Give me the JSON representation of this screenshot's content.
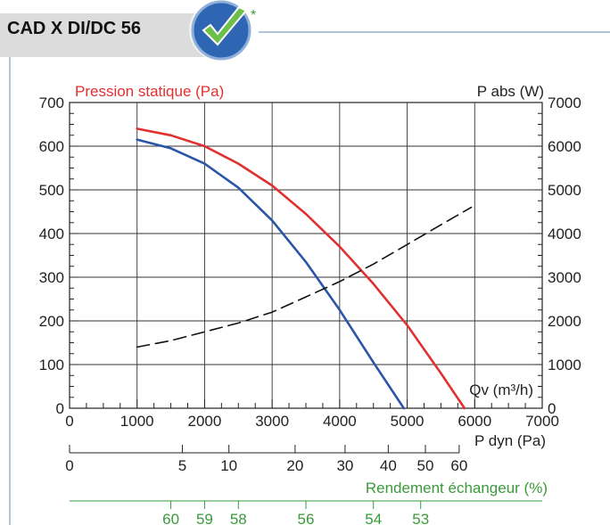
{
  "header": {
    "title": "CAD X DI/DC 56",
    "badge_mark": "*",
    "badge_icon": "checkmark-badge-icon",
    "tab_color": "#dcdcdc",
    "rule_color": "#7f9fbf"
  },
  "chart_data": {
    "type": "line",
    "x_axis": {
      "label": "Qv (m³/h)",
      "ticks": [
        0,
        1000,
        2000,
        3000,
        4000,
        5000,
        6000,
        7000
      ],
      "range": [
        0,
        7000
      ]
    },
    "y_axis_left": {
      "label": "Pression statique (Pa)",
      "label_color": "#e03030",
      "ticks": [
        0,
        100,
        200,
        300,
        400,
        500,
        600,
        700
      ],
      "range": [
        0,
        700
      ]
    },
    "y_axis_right": {
      "label": "P abs (W)",
      "ticks": [
        0,
        1000,
        2000,
        3000,
        4000,
        5000,
        6000,
        7000
      ],
      "range": [
        0,
        7000
      ]
    },
    "grid": true,
    "series": [
      {
        "axis": "left",
        "color": "#e03030",
        "style": "solid",
        "x": [
          1000,
          1500,
          2000,
          2500,
          3000,
          3500,
          4000,
          4500,
          5000,
          5500,
          5850
        ],
        "y": [
          640,
          625,
          600,
          560,
          510,
          445,
          370,
          285,
          190,
          80,
          0
        ]
      },
      {
        "axis": "left",
        "color": "#2a55a8",
        "style": "solid",
        "x": [
          1000,
          1500,
          2000,
          2500,
          3000,
          3500,
          4000,
          4500,
          4950
        ],
        "y": [
          615,
          595,
          560,
          505,
          430,
          335,
          225,
          105,
          0
        ]
      },
      {
        "axis": "right",
        "color": "#111111",
        "style": "dashed",
        "x": [
          1000,
          1500,
          2000,
          2500,
          3000,
          3500,
          4000,
          4500,
          5000,
          5500,
          5950
        ],
        "y": [
          1400,
          1550,
          1750,
          1950,
          2200,
          2550,
          2900,
          3300,
          3750,
          4200,
          4600
        ]
      }
    ],
    "secondary_scales": [
      {
        "label": "P dyn (Pa)",
        "label_color": "#222222",
        "ticks": [
          {
            "label": "0",
            "x": 0
          },
          {
            "label": "5",
            "x": 1670
          },
          {
            "label": "10",
            "x": 2360
          },
          {
            "label": "20",
            "x": 3340
          },
          {
            "label": "30",
            "x": 4080
          },
          {
            "label": "40",
            "x": 4720
          },
          {
            "label": "50",
            "x": 5270
          },
          {
            "label": "60",
            "x": 5770
          }
        ]
      },
      {
        "label": "Rendement échangeur (%)",
        "label_color": "#3a9a3a",
        "ticks": [
          {
            "label": "60",
            "x": 1500
          },
          {
            "label": "59",
            "x": 2000
          },
          {
            "label": "58",
            "x": 2500
          },
          {
            "label": "56",
            "x": 3500
          },
          {
            "label": "54",
            "x": 4500
          },
          {
            "label": "53",
            "x": 5200
          }
        ]
      }
    ]
  }
}
